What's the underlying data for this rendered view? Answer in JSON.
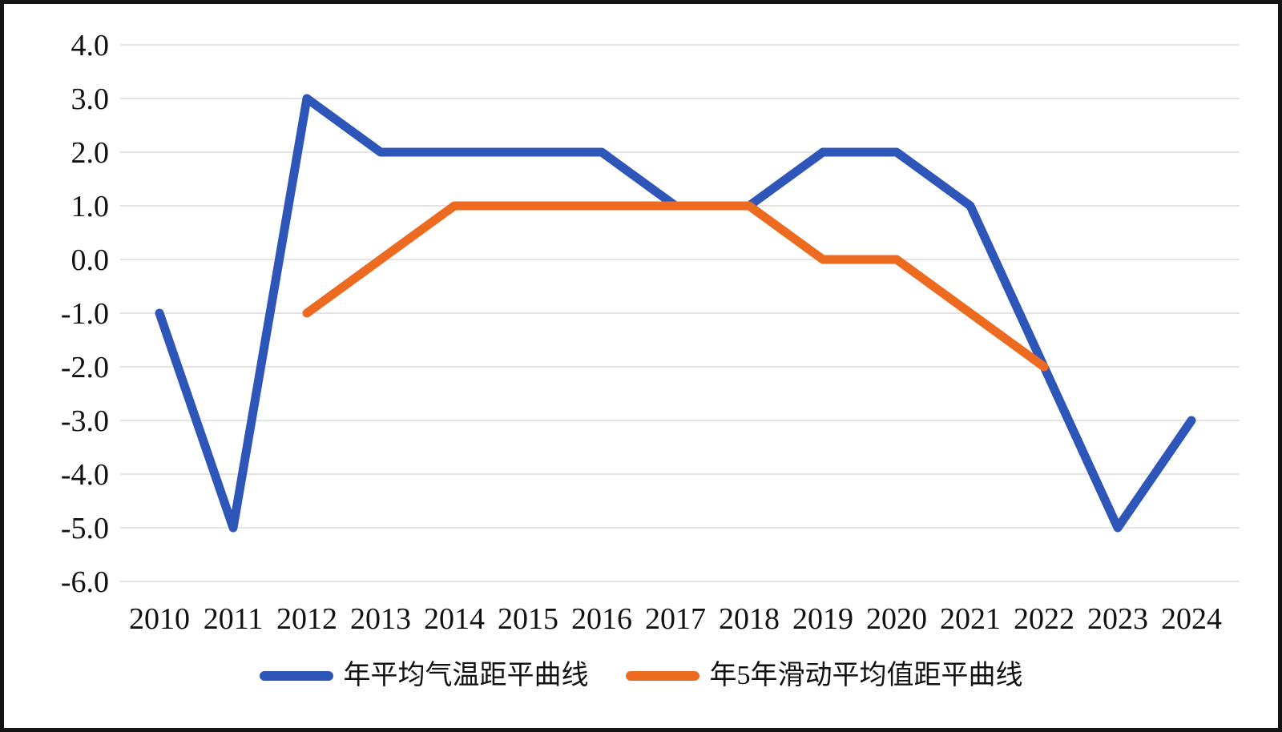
{
  "figure": {
    "background_color": "#ffffff",
    "border_color": "#141414"
  },
  "chart_data": {
    "type": "line",
    "title": "",
    "xlabel": "",
    "ylabel": "",
    "x": [
      2010,
      2011,
      2012,
      2013,
      2014,
      2015,
      2016,
      2017,
      2018,
      2019,
      2020,
      2021,
      2022,
      2023,
      2024
    ],
    "xtick_labels": [
      "2010",
      "2011",
      "2012",
      "2013",
      "2014",
      "2015",
      "2016",
      "2017",
      "2018",
      "2019",
      "2020",
      "2021",
      "2022",
      "2023",
      "2024"
    ],
    "series": [
      {
        "name": "年平均气温距平曲线",
        "color": "#2E56B8",
        "stroke_width": 11,
        "values": [
          -1.0,
          -5.0,
          3.0,
          2.0,
          2.0,
          2.0,
          2.0,
          1.0,
          1.0,
          2.0,
          2.0,
          1.0,
          -2.0,
          -5.0,
          -3.0
        ]
      },
      {
        "name": "年5年滑动平均值距平曲线",
        "color": "#ED6B21",
        "stroke_width": 11,
        "values": [
          null,
          null,
          -1.0,
          0.0,
          1.0,
          1.0,
          1.0,
          1.0,
          1.0,
          0.0,
          0.0,
          -1.0,
          -2.0,
          null,
          null
        ]
      }
    ],
    "ylim": [
      -6.0,
      4.0
    ],
    "ytick_step": 1.0,
    "ytick_labels": [
      "4.0",
      "3.0",
      "2.0",
      "1.0",
      "0.0",
      "-1.0",
      "-2.0",
      "-3.0",
      "-4.0",
      "-5.0",
      "-6.0"
    ],
    "grid": true,
    "gridline_color": "#dcdcdc",
    "legend_position": "bottom"
  }
}
